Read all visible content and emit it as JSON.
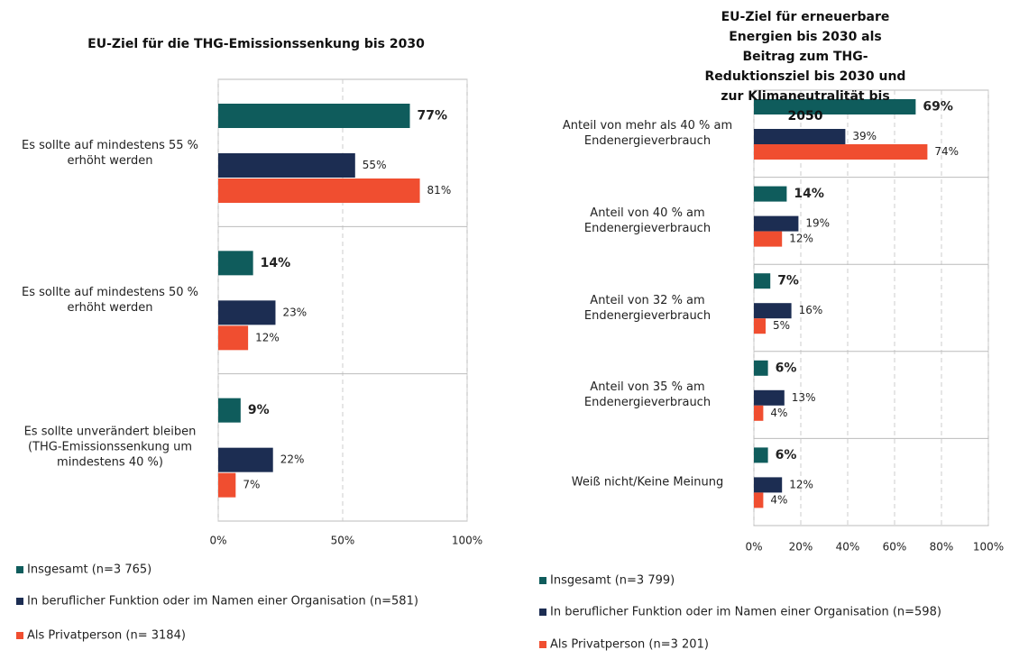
{
  "chart_data": [
    {
      "type": "bar",
      "orientation": "horizontal",
      "title": "EU-Ziel für die THG-Emissionssenkung  bis 2030",
      "categories": [
        "Es sollte auf mindestens 55 %\nerhöht werden",
        "Es sollte auf mindestens 50 %\nerhöht werden",
        "Es sollte unverändert bleiben\n(THG-Emissionssenkung um\nmindestens 40 %)"
      ],
      "series": [
        {
          "name": "Insgesamt (n=3 765)",
          "color": "#0f5c5c",
          "values": [
            77,
            14,
            9
          ],
          "value_labels": [
            "77%",
            "14%",
            "9%"
          ]
        },
        {
          "name": "In beruflicher Funktion oder im Namen einer Organisation (n=581)",
          "color": "#1c2d52",
          "values": [
            55,
            23,
            22
          ],
          "value_labels": [
            "55%",
            "23%",
            "22%"
          ]
        },
        {
          "name": "Als Privatperson (n= 3184)",
          "color": "#f04e30",
          "values": [
            81,
            12,
            7
          ],
          "value_labels": [
            "81%",
            "12%",
            "7%"
          ]
        }
      ],
      "xlim": [
        0,
        100
      ],
      "xticks": [
        {
          "value": 0,
          "label": "0%"
        },
        {
          "value": 50,
          "label": "50%"
        },
        {
          "value": 100,
          "label": "100%"
        }
      ],
      "grid": true
    },
    {
      "type": "bar",
      "orientation": "horizontal",
      "title": "EU-Ziel für erneuerbare  Energien bis 2030 als\nBeitrag zum THG-Reduktionsziel bis 2030 und\nzur Klimaneutralität  bis 2050",
      "categories": [
        "Anteil von mehr als 40 % am\nEndenergieverbrauch",
        "Anteil von 40 % am\nEndenergieverbrauch",
        "Anteil von 32 % am\nEndenergieverbrauch",
        "Anteil von 35 % am\nEndenergieverbrauch",
        "Weiß nicht/Keine Meinung"
      ],
      "series": [
        {
          "name": "Insgesamt (n=3 799)",
          "color": "#0f5c5c",
          "values": [
            69,
            14,
            7,
            6,
            6
          ],
          "value_labels": [
            "69%",
            "14%",
            "7%",
            "6%",
            "6%"
          ]
        },
        {
          "name": "In beruflicher Funktion oder im Namen einer Organisation (n=598)",
          "color": "#1c2d52",
          "values": [
            39,
            19,
            16,
            13,
            12
          ],
          "value_labels": [
            "39%",
            "19%",
            "16%",
            "13%",
            "12%"
          ]
        },
        {
          "name": "Als Privatperson (n=3 201)",
          "color": "#f04e30",
          "values": [
            74,
            12,
            5,
            4,
            4
          ],
          "value_labels": [
            "74%",
            "12%",
            "5%",
            "4%",
            "4%"
          ]
        }
      ],
      "xlim": [
        0,
        100
      ],
      "xticks": [
        {
          "value": 0,
          "label": "0%"
        },
        {
          "value": 20,
          "label": "20%"
        },
        {
          "value": 40,
          "label": "40%"
        },
        {
          "value": 60,
          "label": "60%"
        },
        {
          "value": 80,
          "label": "80%"
        },
        {
          "value": 100,
          "label": "100%"
        }
      ],
      "grid": true
    }
  ]
}
